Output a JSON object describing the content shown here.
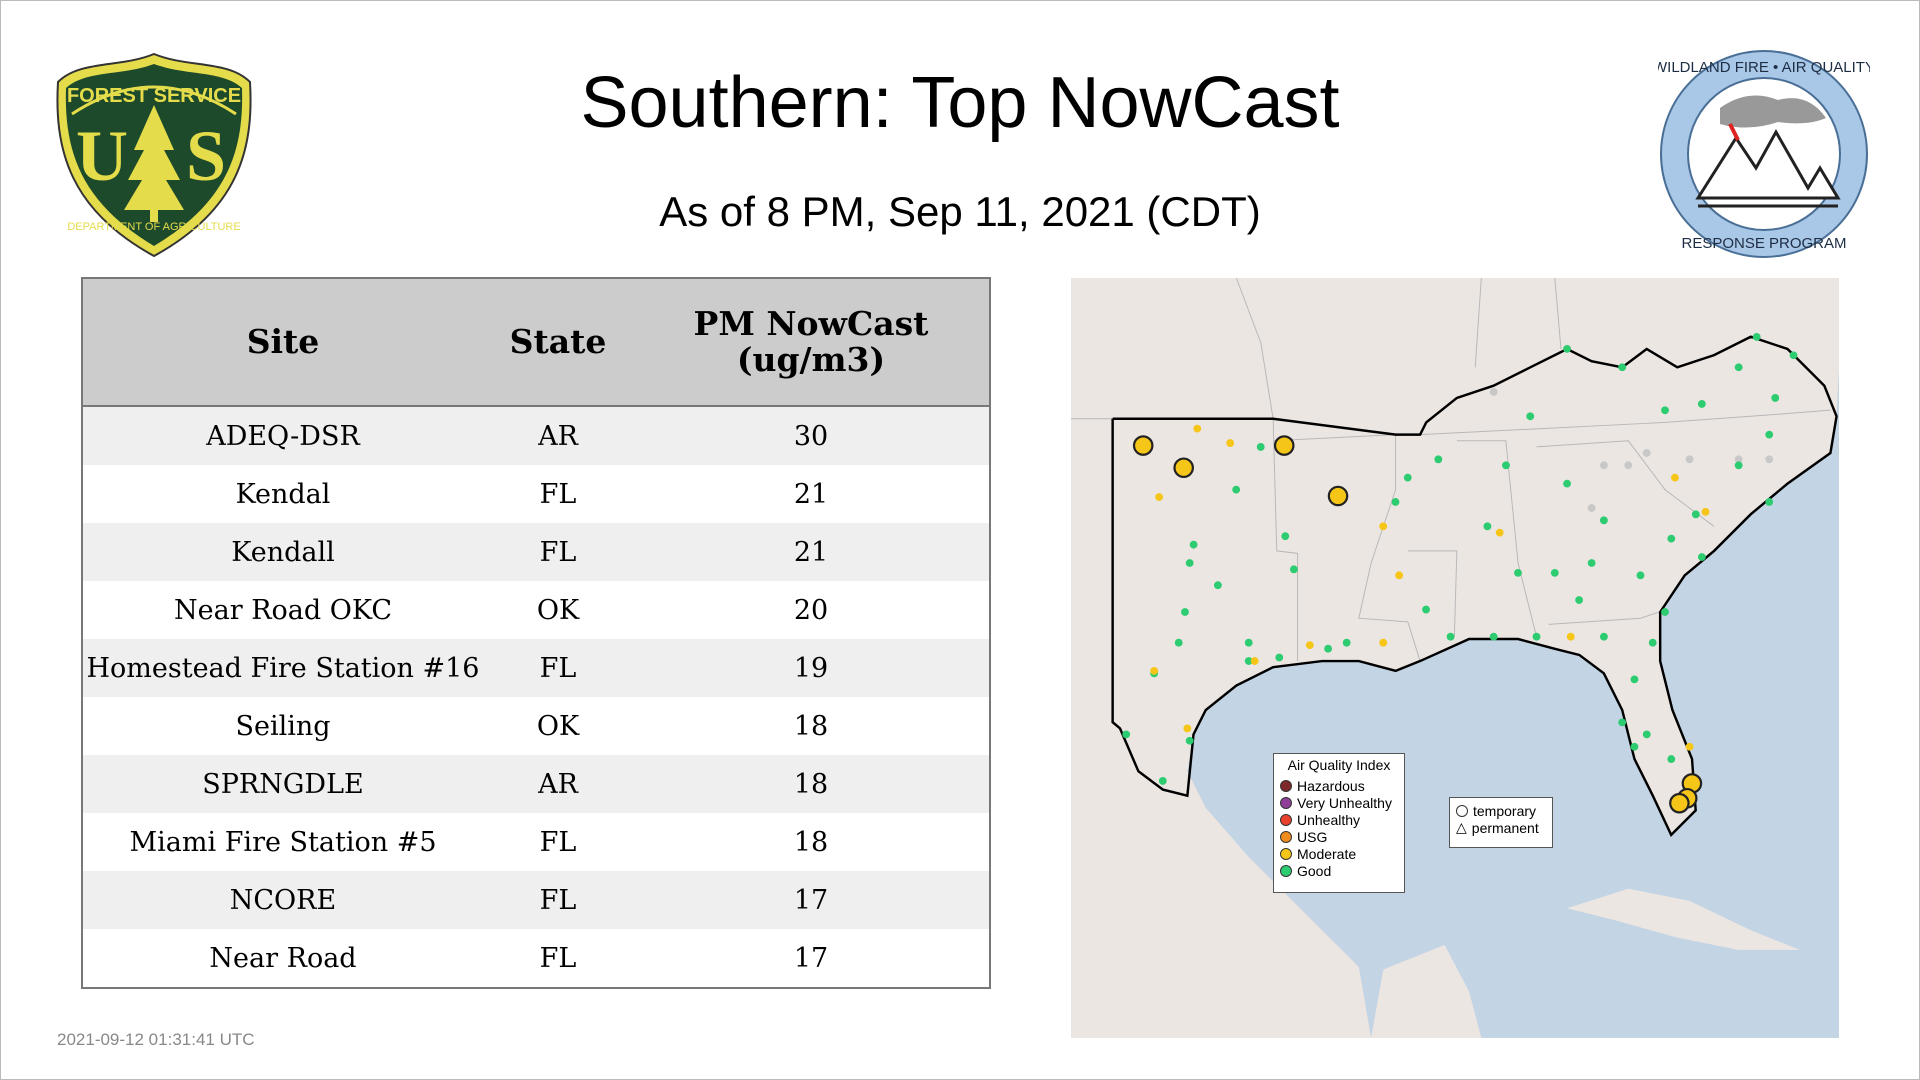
{
  "header": {
    "title": "Southern: Top NowCast",
    "subtitle": "As of  8 PM, Sep 11, 2021 (CDT)"
  },
  "logos": {
    "left": {
      "name": "usfs-shield-logo",
      "text": [
        "FOREST SERVICE",
        "U",
        "S",
        "DEPARTMENT OF AGRICULTURE"
      ]
    },
    "right": {
      "name": "wildland-fire-air-quality-logo",
      "text": [
        "WILDLAND FIRE",
        "AIR QUALITY",
        "RESPONSE PROGRAM"
      ]
    }
  },
  "table": {
    "columns": [
      "Site",
      "State",
      "PM NowCast (ug/m3)"
    ],
    "rows": [
      {
        "site": "ADEQ-DSR",
        "state": "AR",
        "value": "30"
      },
      {
        "site": "Kendal",
        "state": "FL",
        "value": "21"
      },
      {
        "site": "Kendall",
        "state": "FL",
        "value": "21"
      },
      {
        "site": "Near Road OKC",
        "state": "OK",
        "value": "20"
      },
      {
        "site": "Homestead Fire Station #16",
        "state": "FL",
        "value": "19"
      },
      {
        "site": "Seiling",
        "state": "OK",
        "value": "18"
      },
      {
        "site": "SPRNGDLE",
        "state": "AR",
        "value": "18"
      },
      {
        "site": "Miami Fire Station #5",
        "state": "FL",
        "value": "18"
      },
      {
        "site": "NCORE",
        "state": "FL",
        "value": "17"
      },
      {
        "site": "Near Road",
        "state": "FL",
        "value": "17"
      }
    ]
  },
  "map": {
    "legend": {
      "title": "Air Quality Index",
      "items": [
        {
          "label": "Hazardous",
          "color": "#7e2a2a"
        },
        {
          "label": "Very Unhealthy",
          "color": "#8f3f97"
        },
        {
          "label": "Unhealthy",
          "color": "#e8412c"
        },
        {
          "label": "USG",
          "color": "#f08c1e"
        },
        {
          "label": "Moderate",
          "color": "#f5c518"
        },
        {
          "label": "Good",
          "color": "#2ecc71"
        }
      ]
    },
    "shape_legend": {
      "items": [
        {
          "label": "temporary",
          "shape": "circle"
        },
        {
          "label": "permanent",
          "shape": "triangle"
        }
      ]
    },
    "colors": {
      "ocean": "#c3d4e4",
      "land": "#ece6e3",
      "nodata": "#c8c8c8"
    },
    "markers_lonlat": {
      "highlighted_moderate": [
        [
          -101.83,
          36.24
        ],
        [
          -100.28,
          35.61
        ],
        [
          -96.43,
          36.24
        ],
        [
          -94.37,
          34.81
        ],
        [
          -80.82,
          26.66
        ],
        [
          -81.0,
          26.24
        ],
        [
          -81.3,
          26.1
        ]
      ],
      "good": [
        [
          -99.9,
          33.43
        ],
        [
          -100.05,
          32.91
        ],
        [
          -98.97,
          32.28
        ],
        [
          -98.27,
          34.99
        ],
        [
          -96.39,
          33.67
        ],
        [
          -96.06,
          32.73
        ],
        [
          -97.33,
          36.2
        ],
        [
          -100.23,
          31.52
        ],
        [
          -100.47,
          30.65
        ],
        [
          -97.79,
          30.65
        ],
        [
          -101.41,
          29.78
        ],
        [
          -102.48,
          28.05
        ],
        [
          -100.05,
          27.87
        ],
        [
          -101.08,
          26.73
        ],
        [
          -97.79,
          30.13
        ],
        [
          -96.62,
          30.23
        ],
        [
          -94.75,
          30.48
        ],
        [
          -94.04,
          30.65
        ],
        [
          -92.17,
          34.64
        ],
        [
          -91.7,
          35.33
        ],
        [
          -90.53,
          35.85
        ],
        [
          -91.0,
          31.59
        ],
        [
          -90.06,
          30.82
        ],
        [
          -88.65,
          33.95
        ],
        [
          -87.48,
          32.63
        ],
        [
          -87.94,
          35.68
        ],
        [
          -86.07,
          32.63
        ],
        [
          -85.14,
          31.86
        ],
        [
          -84.66,
          32.91
        ],
        [
          -84.19,
          34.12
        ],
        [
          -85.6,
          35.16
        ],
        [
          -87.01,
          37.07
        ],
        [
          -85.6,
          38.98
        ],
        [
          -83.49,
          38.46
        ],
        [
          -81.85,
          37.24
        ],
        [
          -80.44,
          37.42
        ],
        [
          -79.03,
          38.46
        ],
        [
          -77.63,
          37.59
        ],
        [
          -77.86,
          36.55
        ],
        [
          -79.03,
          35.68
        ],
        [
          -80.67,
          34.29
        ],
        [
          -81.61,
          33.6
        ],
        [
          -80.44,
          33.08
        ],
        [
          -81.85,
          31.52
        ],
        [
          -82.32,
          30.65
        ],
        [
          -83.02,
          29.61
        ],
        [
          -83.49,
          28.39
        ],
        [
          -82.55,
          28.05
        ],
        [
          -81.61,
          27.35
        ],
        [
          -83.02,
          27.7
        ],
        [
          -86.77,
          30.82
        ],
        [
          -88.41,
          30.82
        ],
        [
          -84.19,
          30.82
        ],
        [
          -77.86,
          34.64
        ],
        [
          -76.93,
          38.8
        ],
        [
          -78.34,
          39.32
        ],
        [
          -82.79,
          32.56
        ]
      ],
      "moderate": [
        [
          -101.22,
          34.78
        ],
        [
          -99.76,
          36.72
        ],
        [
          -98.5,
          36.31
        ],
        [
          -92.64,
          33.95
        ],
        [
          -92.03,
          32.56
        ],
        [
          -88.18,
          33.77
        ],
        [
          -92.64,
          30.65
        ],
        [
          -95.45,
          30.58
        ],
        [
          -97.56,
          30.13
        ],
        [
          -85.46,
          30.82
        ],
        [
          -80.3,
          34.36
        ],
        [
          -81.47,
          35.33
        ],
        [
          -80.91,
          27.7
        ],
        [
          -101.41,
          29.85
        ],
        [
          -100.14,
          28.22
        ]
      ],
      "nodata": [
        [
          -83.26,
          35.68
        ],
        [
          -82.55,
          36.03
        ],
        [
          -80.91,
          35.85
        ],
        [
          -79.03,
          35.85
        ],
        [
          -77.86,
          35.85
        ],
        [
          -84.66,
          34.47
        ],
        [
          -88.41,
          37.76
        ],
        [
          -84.19,
          35.68
        ]
      ]
    }
  },
  "footer": {
    "timestamp": "2021-09-12 01:31:41 UTC"
  }
}
